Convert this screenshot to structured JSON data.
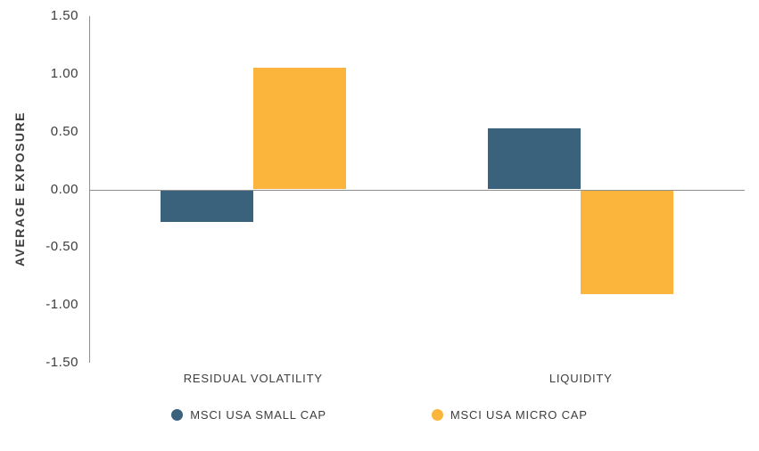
{
  "chart_data": {
    "type": "bar",
    "title": "",
    "ylabel": "AVERAGE EXPOSURE",
    "xlabel": "",
    "ylim": [
      -1.5,
      1.5
    ],
    "yticks": [
      1.5,
      1.0,
      0.5,
      0.0,
      -0.5,
      -1.0,
      -1.5
    ],
    "ytick_format_decimals": 2,
    "categories": [
      "RESIDUAL VOLATILITY",
      "LIQUIDITY"
    ],
    "series": [
      {
        "name": "MSCI USA SMALL CAP",
        "color": "#3A627C",
        "values": [
          -0.27,
          0.53
        ]
      },
      {
        "name": "MSCI USA MICRO CAP",
        "color": "#FBB43C",
        "values": [
          1.05,
          -0.9
        ]
      }
    ],
    "legend_position": "bottom",
    "grid": false,
    "axis_color": "#8f8f8f",
    "text_color": "#3d3d3d"
  }
}
